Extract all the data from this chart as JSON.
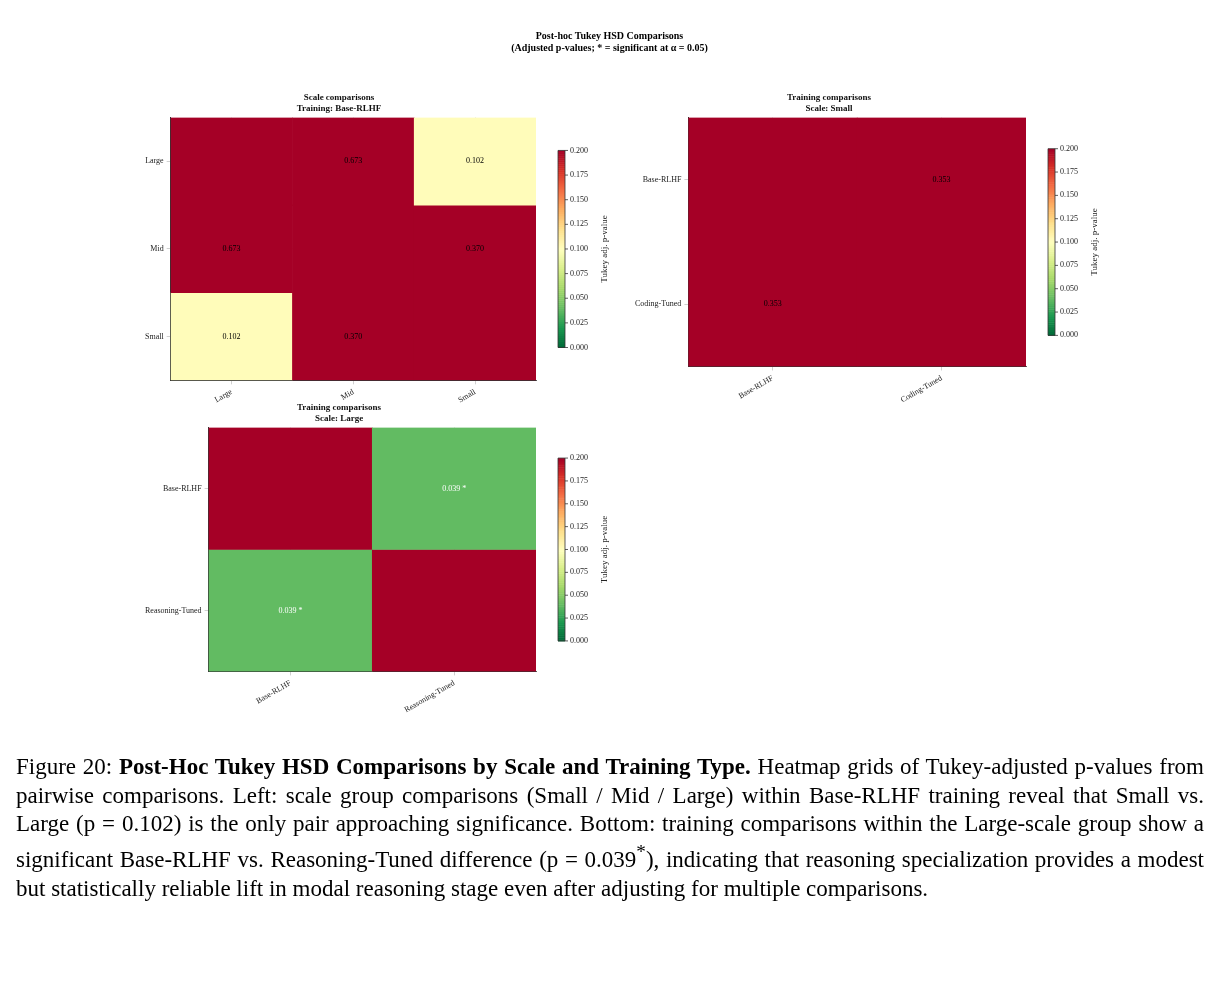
{
  "chart_data": [
    {
      "type": "other",
      "title": "Post-hoc Tukey HSD Comparisons",
      "subtitle": "(Adjusted p-values; * = significant at α = 0.05)"
    },
    {
      "type": "heatmap",
      "title": "Scale comparisons",
      "subtitle": "Training: Base-RLHF",
      "categories": [
        "Large",
        "Mid",
        "Small"
      ],
      "y_categories": [
        "Large",
        "Mid",
        "Small"
      ],
      "cells": [
        [
          1,
          0.673,
          0.102
        ],
        [
          0.673,
          1,
          0.37
        ],
        [
          0.102,
          0.37,
          1
        ]
      ],
      "cell_labels": [
        [
          null,
          "0.673",
          "0.102"
        ],
        [
          "0.673",
          null,
          "0.370"
        ],
        [
          "0.102",
          "0.370",
          null
        ]
      ],
      "clim": [
        0,
        0.2
      ],
      "cticks": [
        {
          "value": 0,
          "label": "0.000"
        },
        {
          "value": 0.025,
          "label": "0.025"
        },
        {
          "value": 0.05,
          "label": "0.050"
        },
        {
          "value": 0.075,
          "label": "0.075"
        },
        {
          "value": 0.1,
          "label": "0.100"
        },
        {
          "value": 0.125,
          "label": "0.125"
        },
        {
          "value": 0.15,
          "label": "0.150"
        },
        {
          "value": 0.175,
          "label": "0.175"
        },
        {
          "value": 0.2,
          "label": "0.200"
        }
      ],
      "clabel": "Tukey adj. p-value",
      "grid": true
    },
    {
      "type": "heatmap",
      "title": "Training comparisons",
      "subtitle": "Scale: Small",
      "categories": [
        "Base-RLHF",
        "Coding-Tuned"
      ],
      "y_categories": [
        "Base-RLHF",
        "Coding-Tuned"
      ],
      "cells": [
        [
          1,
          0.353
        ],
        [
          0.353,
          1
        ]
      ],
      "cell_labels": [
        [
          null,
          "0.353"
        ],
        [
          "0.353",
          null
        ]
      ],
      "clim": [
        0,
        0.2
      ],
      "cticks": [
        {
          "value": 0,
          "label": "0.000"
        },
        {
          "value": 0.025,
          "label": "0.025"
        },
        {
          "value": 0.05,
          "label": "0.050"
        },
        {
          "value": 0.075,
          "label": "0.075"
        },
        {
          "value": 0.1,
          "label": "0.100"
        },
        {
          "value": 0.125,
          "label": "0.125"
        },
        {
          "value": 0.15,
          "label": "0.150"
        },
        {
          "value": 0.175,
          "label": "0.175"
        },
        {
          "value": 0.2,
          "label": "0.200"
        }
      ],
      "clabel": "Tukey adj. p-value",
      "grid": true
    },
    {
      "type": "heatmap",
      "title": "Training comparisons",
      "subtitle": "Scale: Large",
      "categories": [
        "Base-RLHF",
        "Reasoning-Tuned"
      ],
      "y_categories": [
        "Base-RLHF",
        "Reasoning-Tuned"
      ],
      "cells": [
        [
          1,
          0.039
        ],
        [
          0.039,
          1
        ]
      ],
      "cell_labels": [
        [
          null,
          "0.039 *"
        ],
        [
          "0.039 *",
          null
        ]
      ],
      "clim": [
        0,
        0.2
      ],
      "cticks": [
        {
          "value": 0,
          "label": "0.000"
        },
        {
          "value": 0.025,
          "label": "0.025"
        },
        {
          "value": 0.05,
          "label": "0.050"
        },
        {
          "value": 0.075,
          "label": "0.075"
        },
        {
          "value": 0.1,
          "label": "0.100"
        },
        {
          "value": 0.125,
          "label": "0.125"
        },
        {
          "value": 0.15,
          "label": "0.150"
        },
        {
          "value": 0.175,
          "label": "0.175"
        },
        {
          "value": 0.2,
          "label": "0.200"
        }
      ],
      "clabel": "Tukey adj. p-value",
      "grid": true
    },
    {
      "type": "other",
      "annotations": [
        "Figure 20:",
        "Post-Hoc Tukey HSD Comparisons by Scale and Training Type.",
        "Heatmap grids of Tukey-adjusted p-values from pairwise comparisons. Left: scale group comparisons (Small / Mid / Large) within Base-RLHF training reveal that Small vs. Large (p = 0.102) is the only pair approaching significance. Bottom: training comparisons within the Large-scale group show a significant Base-RLHF vs. Reasoning-Tuned difference (p = 0.039$^{*}$), indicating that reasoning specialization provides a modest but statistically reliable lift in modal reasoning stage even after adjusting for multiple comparisons."
      ]
    }
  ]
}
